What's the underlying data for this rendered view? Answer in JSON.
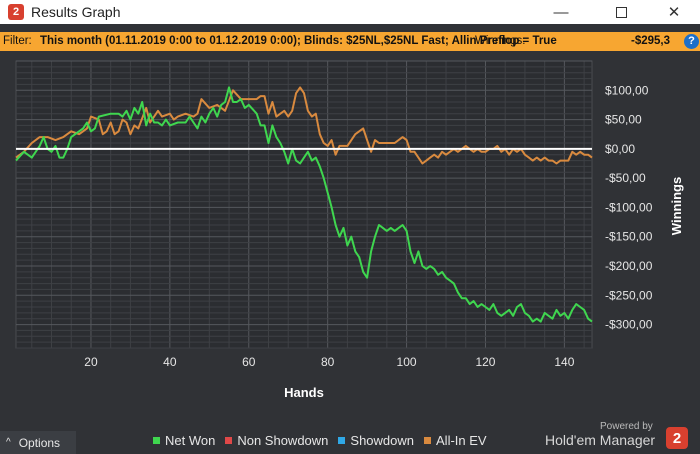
{
  "window": {
    "title": "Results Graph",
    "app_icon_glyph": "2",
    "minimize_glyph": "—",
    "close_glyph": "✕"
  },
  "filter": {
    "label": "Filter:",
    "text": "This month (01.11.2019 0:00 to 01.12.2019 0:00); Blinds: $25NL,$25NL Fast; Allin Preflop = True",
    "winnings_label": "Winnings:",
    "winnings_value": "-$295,3",
    "help_glyph": "?"
  },
  "chart_data": {
    "type": "line",
    "xlabel": "Hands",
    "ylabel": "Winnings",
    "xlim": [
      1,
      147
    ],
    "ylim": [
      -340,
      150
    ],
    "x_ticks": [
      20,
      40,
      60,
      80,
      100,
      120,
      140
    ],
    "y_ticks": [
      100,
      50,
      0,
      -50,
      -100,
      -150,
      -200,
      -250,
      -300
    ],
    "y_tick_labels": [
      "$100,00",
      "$50,00",
      "$0,00",
      "-$50,00",
      "-$100,00",
      "-$150,00",
      "-$200,00",
      "-$250,00",
      "-$300,00"
    ],
    "zero_line": true,
    "grid": true,
    "legend": "bottom",
    "series": [
      {
        "name": "Net Won",
        "color": "#3fd64f",
        "points": [
          [
            1,
            -20
          ],
          [
            3,
            -5
          ],
          [
            5,
            -15
          ],
          [
            7,
            5
          ],
          [
            8,
            20
          ],
          [
            9,
            0
          ],
          [
            10,
            -5
          ],
          [
            11,
            5
          ],
          [
            12,
            -15
          ],
          [
            13,
            -15
          ],
          [
            14,
            0
          ],
          [
            15,
            20
          ],
          [
            17,
            30
          ],
          [
            18,
            35
          ],
          [
            19,
            45
          ],
          [
            20,
            30
          ],
          [
            21,
            35
          ],
          [
            22,
            55
          ],
          [
            25,
            60
          ],
          [
            27,
            60
          ],
          [
            28,
            55
          ],
          [
            29,
            65
          ],
          [
            30,
            50
          ],
          [
            31,
            70
          ],
          [
            32,
            60
          ],
          [
            33,
            80
          ],
          [
            34,
            40
          ],
          [
            35,
            60
          ],
          [
            36,
            45
          ],
          [
            37,
            45
          ],
          [
            38,
            40
          ],
          [
            39,
            50
          ],
          [
            40,
            40
          ],
          [
            42,
            45
          ],
          [
            44,
            45
          ],
          [
            45,
            55
          ],
          [
            46,
            45
          ],
          [
            47,
            35
          ],
          [
            48,
            55
          ],
          [
            49,
            45
          ],
          [
            50,
            60
          ],
          [
            51,
            70
          ],
          [
            52,
            55
          ],
          [
            53,
            75
          ],
          [
            54,
            80
          ],
          [
            55,
            105
          ],
          [
            56,
            80
          ],
          [
            57,
            80
          ],
          [
            58,
            85
          ],
          [
            59,
            70
          ],
          [
            60,
            75
          ],
          [
            62,
            60
          ],
          [
            63,
            40
          ],
          [
            64,
            40
          ],
          [
            65,
            10
          ],
          [
            66,
            40
          ],
          [
            67,
            20
          ],
          [
            68,
            10
          ],
          [
            69,
            -5
          ],
          [
            70,
            -25
          ],
          [
            71,
            0
          ],
          [
            72,
            -20
          ],
          [
            73,
            -25
          ],
          [
            74,
            -15
          ],
          [
            75,
            -5
          ],
          [
            76,
            -20
          ],
          [
            77,
            -15
          ],
          [
            78,
            -30
          ],
          [
            79,
            -50
          ],
          [
            80,
            -75
          ],
          [
            81,
            -100
          ],
          [
            82,
            -130
          ],
          [
            83,
            -150
          ],
          [
            84,
            -135
          ],
          [
            85,
            -165
          ],
          [
            86,
            -150
          ],
          [
            87,
            -175
          ],
          [
            88,
            -185
          ],
          [
            89,
            -210
          ],
          [
            90,
            -220
          ],
          [
            91,
            -175
          ],
          [
            92,
            -150
          ],
          [
            93,
            -130
          ],
          [
            94,
            -135
          ],
          [
            95,
            -140
          ],
          [
            96,
            -135
          ],
          [
            97,
            -140
          ],
          [
            98,
            -135
          ],
          [
            99,
            -130
          ],
          [
            100,
            -140
          ],
          [
            101,
            -175
          ],
          [
            102,
            -195
          ],
          [
            103,
            -175
          ],
          [
            104,
            -200
          ],
          [
            105,
            -205
          ],
          [
            106,
            -200
          ],
          [
            107,
            -205
          ],
          [
            108,
            -215
          ],
          [
            109,
            -210
          ],
          [
            110,
            -220
          ],
          [
            111,
            -225
          ],
          [
            112,
            -230
          ],
          [
            113,
            -245
          ],
          [
            114,
            -255
          ],
          [
            115,
            -255
          ],
          [
            116,
            -265
          ],
          [
            117,
            -260
          ],
          [
            118,
            -270
          ],
          [
            119,
            -265
          ],
          [
            120,
            -270
          ],
          [
            121,
            -275
          ],
          [
            122,
            -265
          ],
          [
            123,
            -280
          ],
          [
            124,
            -285
          ],
          [
            125,
            -280
          ],
          [
            126,
            -275
          ],
          [
            127,
            -285
          ],
          [
            128,
            -270
          ],
          [
            129,
            -265
          ],
          [
            130,
            -280
          ],
          [
            131,
            -285
          ],
          [
            132,
            -295
          ],
          [
            133,
            -290
          ],
          [
            134,
            -295
          ],
          [
            135,
            -280
          ],
          [
            136,
            -285
          ],
          [
            137,
            -290
          ],
          [
            138,
            -275
          ],
          [
            139,
            -285
          ],
          [
            140,
            -280
          ],
          [
            141,
            -290
          ],
          [
            142,
            -275
          ],
          [
            143,
            -265
          ],
          [
            144,
            -270
          ],
          [
            145,
            -275
          ],
          [
            146,
            -290
          ],
          [
            147,
            -295
          ]
        ]
      },
      {
        "name": "Non Showdown",
        "color": "#e04848",
        "points": []
      },
      {
        "name": "Showdown",
        "color": "#2fa8e6",
        "points": []
      },
      {
        "name": "All-In EV",
        "color": "#d98a3f",
        "points": [
          [
            1,
            -15
          ],
          [
            3,
            -5
          ],
          [
            5,
            10
          ],
          [
            7,
            20
          ],
          [
            9,
            20
          ],
          [
            11,
            15
          ],
          [
            13,
            20
          ],
          [
            15,
            30
          ],
          [
            17,
            25
          ],
          [
            18,
            30
          ],
          [
            19,
            35
          ],
          [
            20,
            55
          ],
          [
            22,
            50
          ],
          [
            23,
            25
          ],
          [
            24,
            30
          ],
          [
            25,
            45
          ],
          [
            26,
            25
          ],
          [
            27,
            30
          ],
          [
            28,
            50
          ],
          [
            29,
            45
          ],
          [
            30,
            25
          ],
          [
            31,
            40
          ],
          [
            32,
            35
          ],
          [
            34,
            70
          ],
          [
            35,
            45
          ],
          [
            37,
            65
          ],
          [
            38,
            55
          ],
          [
            40,
            60
          ],
          [
            41,
            50
          ],
          [
            42,
            55
          ],
          [
            44,
            60
          ],
          [
            46,
            55
          ],
          [
            47,
            60
          ],
          [
            48,
            85
          ],
          [
            50,
            70
          ],
          [
            52,
            75
          ],
          [
            54,
            65
          ],
          [
            56,
            100
          ],
          [
            58,
            85
          ],
          [
            60,
            85
          ],
          [
            62,
            85
          ],
          [
            63,
            90
          ],
          [
            64,
            90
          ],
          [
            65,
            60
          ],
          [
            66,
            80
          ],
          [
            67,
            55
          ],
          [
            68,
            60
          ],
          [
            69,
            65
          ],
          [
            70,
            55
          ],
          [
            71,
            65
          ],
          [
            72,
            95
          ],
          [
            73,
            105
          ],
          [
            74,
            95
          ],
          [
            75,
            65
          ],
          [
            76,
            55
          ],
          [
            77,
            60
          ],
          [
            78,
            25
          ],
          [
            79,
            10
          ],
          [
            80,
            5
          ],
          [
            81,
            15
          ],
          [
            82,
            -10
          ],
          [
            83,
            5
          ],
          [
            85,
            5
          ],
          [
            87,
            25
          ],
          [
            89,
            35
          ],
          [
            90,
            15
          ],
          [
            91,
            -5
          ],
          [
            92,
            15
          ],
          [
            93,
            10
          ],
          [
            95,
            10
          ],
          [
            97,
            10
          ],
          [
            99,
            20
          ],
          [
            100,
            15
          ],
          [
            101,
            -5
          ],
          [
            102,
            -5
          ],
          [
            103,
            -15
          ],
          [
            104,
            -25
          ],
          [
            105,
            -20
          ],
          [
            106,
            -15
          ],
          [
            107,
            -10
          ],
          [
            108,
            -15
          ],
          [
            109,
            -5
          ],
          [
            110,
            -10
          ],
          [
            111,
            -5
          ],
          [
            112,
            0
          ],
          [
            113,
            -5
          ],
          [
            114,
            0
          ],
          [
            115,
            5
          ],
          [
            116,
            0
          ],
          [
            117,
            -5
          ],
          [
            118,
            0
          ],
          [
            119,
            -5
          ],
          [
            120,
            -5
          ],
          [
            121,
            0
          ],
          [
            122,
            0
          ],
          [
            123,
            5
          ],
          [
            124,
            -5
          ],
          [
            125,
            0
          ],
          [
            126,
            -10
          ],
          [
            127,
            0
          ],
          [
            128,
            -5
          ],
          [
            129,
            0
          ],
          [
            130,
            -10
          ],
          [
            131,
            -15
          ],
          [
            132,
            -20
          ],
          [
            133,
            -15
          ],
          [
            134,
            -20
          ],
          [
            135,
            -15
          ],
          [
            136,
            -20
          ],
          [
            137,
            -20
          ],
          [
            138,
            -25
          ],
          [
            139,
            -20
          ],
          [
            140,
            -20
          ],
          [
            141,
            -20
          ],
          [
            142,
            -5
          ],
          [
            143,
            -10
          ],
          [
            144,
            -5
          ],
          [
            145,
            -10
          ],
          [
            146,
            -10
          ],
          [
            147,
            -15
          ]
        ]
      }
    ]
  },
  "options": {
    "label": "Options",
    "chevron_icon": "^"
  },
  "branding": {
    "powered_by": "Powered by",
    "name": "Hold'em Manager",
    "logo_glyph": "2"
  }
}
